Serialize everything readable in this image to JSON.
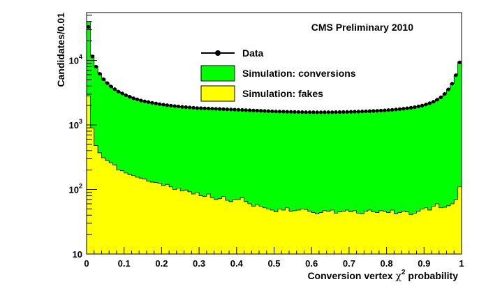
{
  "chart_data": {
    "type": "area",
    "title": "CMS Preliminary 2010",
    "xlabel_main": "Conversion vertex ",
    "xlabel_chi": "χ",
    "xlabel_sup": "2",
    "xlabel_tail": " probability",
    "ylabel": "Candidates/0.01",
    "xlim": [
      0,
      1
    ],
    "ylim": [
      10,
      55000
    ],
    "yscale": "log",
    "grid": false,
    "legend_position": "top-center",
    "colors": {
      "conversions": "#00ff00",
      "fakes": "#ffff00",
      "data": "#000000",
      "outline": "#000000"
    },
    "xticks": [
      "0",
      "0.1",
      "0.2",
      "0.3",
      "0.4",
      "0.5",
      "0.6",
      "0.7",
      "0.8",
      "0.9",
      "1"
    ],
    "ytick_labels": {
      "10": "10",
      "100_base": "10",
      "100_exp": "2",
      "1000_base": "10",
      "1000_exp": "3",
      "10000_base": "10",
      "10000_exp": "4"
    },
    "legend": {
      "data": "Data",
      "conversions": "Simulation: conversions",
      "fakes": "Simulation: fakes"
    },
    "bin_width": 0.01,
    "x": [
      0.005,
      0.015,
      0.025,
      0.035,
      0.045,
      0.055,
      0.065,
      0.075,
      0.085,
      0.095,
      0.105,
      0.115,
      0.125,
      0.135,
      0.145,
      0.155,
      0.165,
      0.175,
      0.185,
      0.195,
      0.205,
      0.215,
      0.225,
      0.235,
      0.245,
      0.255,
      0.265,
      0.275,
      0.285,
      0.295,
      0.305,
      0.315,
      0.325,
      0.335,
      0.345,
      0.355,
      0.365,
      0.375,
      0.385,
      0.395,
      0.405,
      0.415,
      0.425,
      0.435,
      0.445,
      0.455,
      0.465,
      0.475,
      0.485,
      0.495,
      0.505,
      0.515,
      0.525,
      0.535,
      0.545,
      0.555,
      0.565,
      0.575,
      0.585,
      0.595,
      0.605,
      0.615,
      0.625,
      0.635,
      0.645,
      0.655,
      0.665,
      0.675,
      0.685,
      0.695,
      0.705,
      0.715,
      0.725,
      0.735,
      0.745,
      0.755,
      0.765,
      0.775,
      0.785,
      0.795,
      0.805,
      0.815,
      0.825,
      0.835,
      0.845,
      0.855,
      0.865,
      0.875,
      0.885,
      0.895,
      0.905,
      0.915,
      0.925,
      0.935,
      0.945,
      0.955,
      0.965,
      0.975,
      0.985,
      0.995
    ],
    "series": [
      {
        "name": "Simulation: conversions",
        "values": [
          40000,
          12000,
          8200,
          6300,
          5200,
          4500,
          4000,
          3600,
          3300,
          3100,
          2900,
          2750,
          2600,
          2500,
          2400,
          2330,
          2270,
          2210,
          2160,
          2110,
          2070,
          2030,
          2000,
          1970,
          1940,
          1910,
          1890,
          1870,
          1850,
          1830,
          1820,
          1810,
          1800,
          1790,
          1780,
          1770,
          1760,
          1750,
          1740,
          1730,
          1720,
          1710,
          1700,
          1690,
          1680,
          1670,
          1660,
          1650,
          1640,
          1630,
          1620,
          1615,
          1610,
          1605,
          1600,
          1595,
          1590,
          1585,
          1580,
          1578,
          1576,
          1575,
          1575,
          1576,
          1578,
          1580,
          1583,
          1586,
          1590,
          1595,
          1600,
          1606,
          1612,
          1620,
          1628,
          1637,
          1647,
          1658,
          1670,
          1684,
          1700,
          1718,
          1738,
          1760,
          1785,
          1815,
          1850,
          1890,
          1940,
          2000,
          2080,
          2180,
          2300,
          2480,
          2700,
          3050,
          3600,
          4400,
          6000,
          9500
        ]
      },
      {
        "name": "Simulation: fakes",
        "values": [
          2800,
          900,
          480,
          370,
          310,
          280,
          260,
          240,
          200,
          195,
          180,
          170,
          165,
          155,
          150,
          145,
          135,
          130,
          128,
          125,
          115,
          120,
          110,
          100,
          105,
          95,
          98,
          92,
          85,
          90,
          80,
          78,
          85,
          75,
          70,
          72,
          78,
          68,
          65,
          70,
          70,
          75,
          65,
          60,
          55,
          58,
          55,
          52,
          50,
          48,
          45,
          50,
          48,
          52,
          46,
          47,
          48,
          50,
          49,
          46,
          44,
          42,
          44,
          47,
          46,
          48,
          43,
          45,
          46,
          48,
          45,
          47,
          43,
          42,
          46,
          48,
          45,
          44,
          47,
          46,
          44,
          48,
          42,
          44,
          46,
          45,
          41,
          43,
          46,
          50,
          52,
          48,
          55,
          60,
          52,
          53,
          56,
          60,
          70,
          110
        ]
      },
      {
        "name": "Data",
        "values": [
          33000,
          11500,
          8000,
          6200,
          5100,
          4450,
          3950,
          3580,
          3280,
          3080,
          2880,
          2730,
          2590,
          2490,
          2390,
          2320,
          2260,
          2200,
          2150,
          2100,
          2060,
          2020,
          1990,
          1960,
          1930,
          1905,
          1885,
          1865,
          1845,
          1826,
          1816,
          1806,
          1796,
          1786,
          1776,
          1766,
          1756,
          1746,
          1736,
          1726,
          1716,
          1706,
          1696,
          1686,
          1676,
          1666,
          1656,
          1646,
          1636,
          1626,
          1616,
          1612,
          1607,
          1602,
          1597,
          1592,
          1587,
          1582,
          1578,
          1576,
          1574,
          1573,
          1573,
          1574,
          1576,
          1578,
          1581,
          1584,
          1588,
          1593,
          1598,
          1604,
          1610,
          1618,
          1626,
          1635,
          1645,
          1656,
          1668,
          1682,
          1698,
          1716,
          1736,
          1758,
          1783,
          1812,
          1846,
          1886,
          1935,
          1995,
          2075,
          2170,
          2290,
          2460,
          2680,
          3020,
          3560,
          4350,
          5900,
          9300
        ]
      }
    ]
  }
}
